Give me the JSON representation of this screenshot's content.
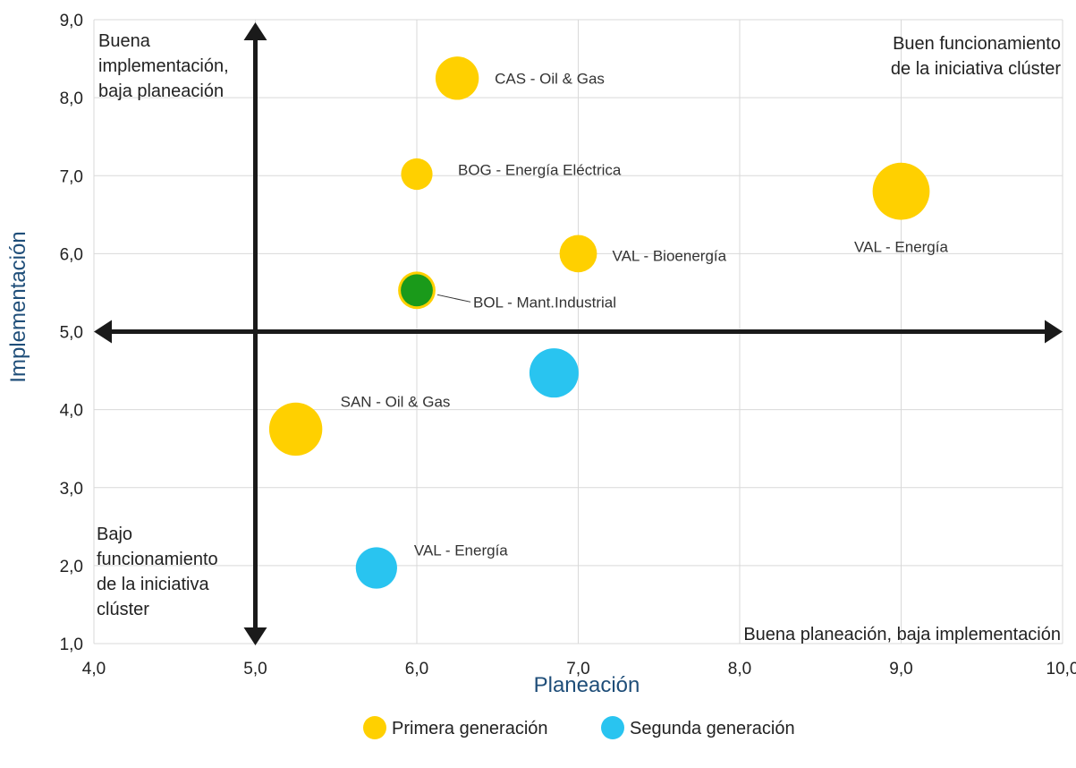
{
  "chart_data": {
    "type": "scatter",
    "xlabel": "Planeación",
    "ylabel": "Implementación",
    "xlim": [
      4,
      10
    ],
    "ylim": [
      1,
      9
    ],
    "x_ticks": [
      "4,0",
      "5,0",
      "6,0",
      "7,0",
      "8,0",
      "9,0",
      "10,0"
    ],
    "y_ticks": [
      "1,0",
      "2,0",
      "3,0",
      "4,0",
      "5,0",
      "6,0",
      "7,0",
      "8,0",
      "9,0"
    ],
    "grid": true,
    "reference_lines": {
      "x": 5.0,
      "y": 5.0
    },
    "quadrant_labels": {
      "top_left": [
        "Buena",
        "implementación,",
        "baja planeación"
      ],
      "top_right": [
        "Buen funcionamiento",
        "de la iniciativa clúster"
      ],
      "bottom_left": [
        "Bajo",
        "funcionamiento",
        "de la iniciativa",
        "clúster"
      ],
      "bottom_right": [
        "Buena planeación, baja implementación"
      ]
    },
    "series": [
      {
        "name": "Primera generación",
        "color": "#ffd000",
        "points": [
          {
            "label": "CAS - Oil & Gas",
            "x": 6.25,
            "y": 8.25,
            "size": 1.1
          },
          {
            "label": "BOG - Energía Eléctrica",
            "x": 6.0,
            "y": 7.02,
            "size": 0.8
          },
          {
            "label": "VAL - Bioenergía",
            "x": 7.0,
            "y": 6.0,
            "size": 0.95
          },
          {
            "label": "VAL - Energía",
            "x": 9.0,
            "y": 6.8,
            "size": 1.45
          },
          {
            "label": "BOL - Mant.Industrial",
            "x": 6.0,
            "y": 5.53,
            "size": 0.95,
            "inner_color": "#1a9a1a"
          },
          {
            "label": "SAN - Oil & Gas",
            "x": 5.25,
            "y": 3.75,
            "size": 1.35
          }
        ]
      },
      {
        "name": "Segunda generación",
        "color": "#29c4f0",
        "points": [
          {
            "label": "",
            "x": 6.85,
            "y": 4.47,
            "size": 1.25
          },
          {
            "label": "VAL - Energía",
            "x": 5.75,
            "y": 1.97,
            "size": 1.05
          }
        ]
      }
    ],
    "legend": {
      "placement": "bottom"
    }
  }
}
